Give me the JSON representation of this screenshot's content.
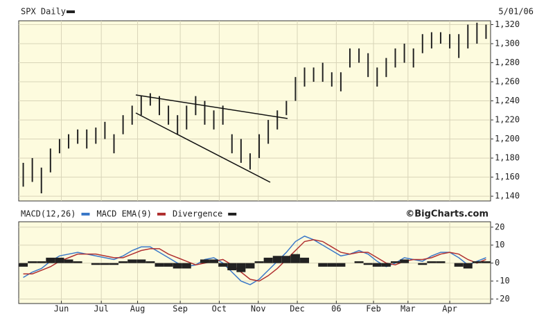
{
  "chart_data": [
    {
      "type": "hilo",
      "title": "SPX Daily",
      "date": "5/01/06",
      "color": "#222222",
      "high": [
        1175,
        1180,
        1170,
        1190,
        1200,
        1205,
        1210,
        1210,
        1212,
        1218,
        1205,
        1225,
        1235,
        1245,
        1248,
        1245,
        1235,
        1225,
        1235,
        1245,
        1240,
        1230,
        1235,
        1205,
        1200,
        1185,
        1205,
        1220,
        1230,
        1240,
        1265,
        1275,
        1275,
        1280,
        1270,
        1270,
        1295,
        1295,
        1290,
        1275,
        1285,
        1295,
        1300,
        1295,
        1310,
        1312,
        1312,
        1310,
        1310,
        1320,
        1322,
        1320
      ],
      "low": [
        1150,
        1155,
        1143,
        1165,
        1185,
        1190,
        1195,
        1190,
        1195,
        1200,
        1185,
        1205,
        1215,
        1225,
        1235,
        1225,
        1215,
        1205,
        1210,
        1225,
        1215,
        1210,
        1215,
        1185,
        1175,
        1168,
        1180,
        1195,
        1210,
        1225,
        1240,
        1255,
        1260,
        1260,
        1255,
        1250,
        1275,
        1280,
        1265,
        1255,
        1265,
        1275,
        1280,
        1275,
        1290,
        1295,
        1300,
        1295,
        1285,
        1295,
        1300,
        1305
      ],
      "ylim": [
        1135,
        1324
      ],
      "yticks": [
        {
          "value": 1320,
          "label": "1,320"
        },
        {
          "value": 1300,
          "label": "1,300"
        },
        {
          "value": 1280,
          "label": "1,280"
        },
        {
          "value": 1260,
          "label": "1,260"
        },
        {
          "value": 1240,
          "label": "1,240"
        },
        {
          "value": 1220,
          "label": "1,220"
        },
        {
          "value": 1200,
          "label": "1,200"
        },
        {
          "value": 1180,
          "label": "1,180"
        },
        {
          "value": 1160,
          "label": "1,160"
        },
        {
          "value": 1140,
          "label": "1,140"
        }
      ],
      "grid": true
    },
    {
      "type": "line",
      "credit": "©BigCharts.com",
      "series": [
        {
          "name": "MACD(12,26)",
          "color": "#3a78c8",
          "values": [
            -8,
            -5,
            -3,
            1,
            4,
            5,
            6,
            5,
            4,
            3,
            2,
            4,
            7,
            9,
            9,
            6,
            3,
            0,
            -2,
            -1,
            2,
            3,
            0,
            -5,
            -10,
            -12,
            -9,
            -4,
            1,
            6,
            12,
            15,
            13,
            10,
            7,
            4,
            5,
            7,
            5,
            1,
            -2,
            0,
            3,
            2,
            1,
            4,
            6,
            6,
            3,
            -1,
            1,
            3
          ]
        },
        {
          "name": "MACD EMA(9)",
          "color": "#b03030",
          "values": [
            -6,
            -6,
            -4,
            -2,
            1,
            3,
            5,
            5,
            5,
            4,
            3,
            3,
            5,
            7,
            8,
            8,
            5,
            3,
            1,
            -1,
            0,
            1,
            2,
            -1,
            -5,
            -9,
            -10,
            -7,
            -3,
            2,
            7,
            12,
            13,
            12,
            9,
            6,
            5,
            6,
            6,
            3,
            0,
            -1,
            1,
            2,
            2,
            3,
            5,
            6,
            5,
            2,
            0,
            2
          ]
        },
        {
          "name": "Divergence",
          "color": "#222222",
          "kind": "bar",
          "values": [
            -2,
            1,
            1,
            3,
            3,
            2,
            1,
            0,
            -1,
            -1,
            -1,
            1,
            2,
            2,
            1,
            -2,
            -2,
            -3,
            -3,
            0,
            2,
            2,
            -2,
            -4,
            -5,
            -3,
            1,
            3,
            4,
            4,
            5,
            3,
            0,
            -2,
            -2,
            -2,
            0,
            1,
            -1,
            -2,
            -2,
            1,
            2,
            0,
            -1,
            1,
            1,
            0,
            -2,
            -3,
            1,
            1
          ]
        }
      ],
      "ylim": [
        -22.5,
        23
      ],
      "yticks": [
        20,
        10,
        0,
        -10,
        -20
      ],
      "xlim": [
        -0.5,
        51.5
      ],
      "xticks": [
        {
          "value": 4.2,
          "label": "Jun"
        },
        {
          "value": 8.6,
          "label": "Jul"
        },
        {
          "value": 12.6,
          "label": "Aug"
        },
        {
          "value": 17.3,
          "label": "Sep"
        },
        {
          "value": 21.6,
          "label": "Oct"
        },
        {
          "value": 25.9,
          "label": "Nov"
        },
        {
          "value": 30.2,
          "label": "Dec"
        },
        {
          "value": 34.5,
          "label": "06"
        },
        {
          "value": 38.6,
          "label": "Feb"
        },
        {
          "value": 42.4,
          "label": "Mar"
        },
        {
          "value": 47,
          "label": "Apr"
        }
      ],
      "grid": true
    }
  ]
}
